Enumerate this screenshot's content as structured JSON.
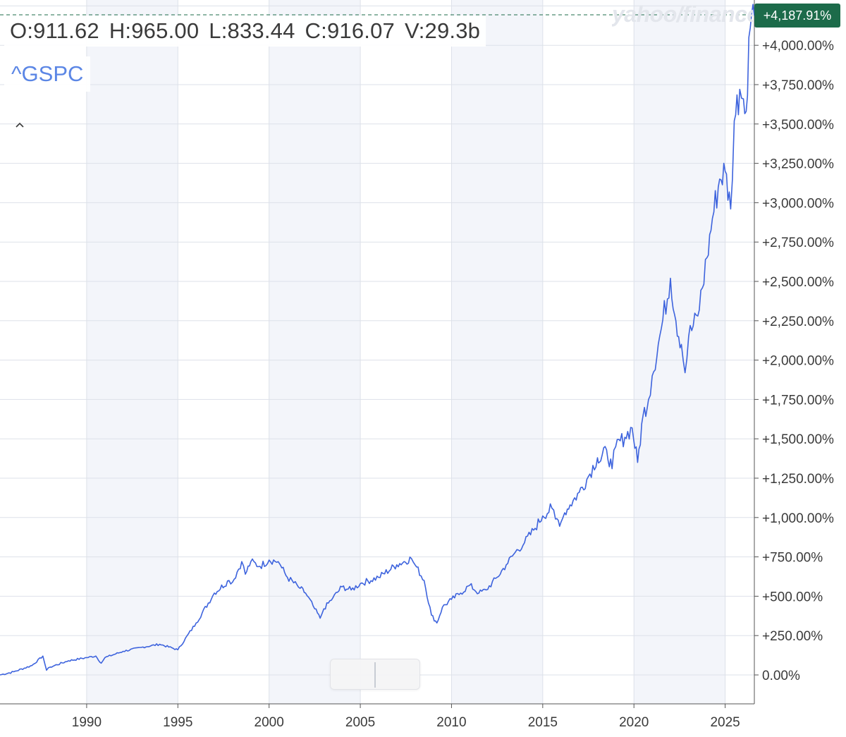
{
  "ohlc": {
    "open": "O:911.62",
    "high": "H:965.00",
    "low": "L:833.44",
    "close": "C:916.07",
    "volume": "V:29.3b"
  },
  "symbol": "^GSPC",
  "collapse_icon": "chevron-up-icon",
  "watermark": "yahoo/finance",
  "last_value_label": "+4,187.91%",
  "colors": {
    "line": "#3d63dd",
    "band": "#f3f5fa",
    "grid": "#dde1e9",
    "badge": "#1c6b4a",
    "symbol": "#5b86e5",
    "text": "#3a3a3a"
  },
  "chart_data": {
    "type": "line",
    "title": "",
    "xlabel": "",
    "ylabel": "",
    "x_ticks": [
      "1990",
      "1995",
      "2000",
      "2005",
      "2010",
      "2015",
      "2020",
      "2025"
    ],
    "y_ticks": [
      "0.00%",
      "+250.00%",
      "+500.00%",
      "+750.00%",
      "+1,000.00%",
      "+1,250.00%",
      "+1,500.00%",
      "+1,750.00%",
      "+2,000.00%",
      "+2,250.00%",
      "+2,500.00%",
      "+2,750.00%",
      "+3,000.00%",
      "+3,250.00%",
      "+3,500.00%",
      "+3,750.00%",
      "+4,000.00%"
    ],
    "y_tick_values": [
      0,
      250,
      500,
      750,
      1000,
      1250,
      1500,
      1750,
      2000,
      2250,
      2500,
      2750,
      3000,
      3250,
      3500,
      3750,
      4000
    ],
    "x_tick_values": [
      1990,
      1995,
      2000,
      2005,
      2010,
      2015,
      2020,
      2025
    ],
    "xlim": [
      1985.25,
      2026.6
    ],
    "ylim": [
      0,
      4250
    ],
    "shaded_periods": [
      [
        1990,
        1995
      ],
      [
        2000,
        2005
      ],
      [
        2010,
        2015
      ],
      [
        2020,
        2025
      ]
    ],
    "last_value": 4187.91,
    "series": [
      {
        "x": [
          1985.25,
          1986.0,
          1987.0,
          1987.6,
          1987.8,
          1988.0,
          1989.0,
          1990.0,
          1990.5,
          1990.8,
          1991.0,
          1992.0,
          1993.0,
          1994.0,
          1995.0,
          1996.0,
          1997.0,
          1997.8,
          1998.0,
          1998.5,
          1998.7,
          1999.0,
          1999.5,
          2000.0,
          2000.5,
          2000.7,
          2001.0,
          2001.7,
          2002.0,
          2002.5,
          2002.8,
          2003.0,
          2003.5,
          2004.0,
          2004.5,
          2005.0,
          2006.0,
          2007.0,
          2007.8,
          2008.0,
          2008.5,
          2008.9,
          2009.2,
          2009.5,
          2010.0,
          2010.5,
          2011.0,
          2011.5,
          2011.9,
          2012.5,
          2013.0,
          2013.5,
          2014.0,
          2014.5,
          2015.0,
          2015.5,
          2015.7,
          2016.0,
          2016.2,
          2016.5,
          2017.0,
          2017.5,
          2018.0,
          2018.1,
          2018.5,
          2018.8,
          2019.0,
          2019.5,
          2019.9,
          2020.2,
          2020.5,
          2020.8,
          2021.0,
          2021.5,
          2022.0,
          2022.3,
          2022.6,
          2022.8,
          2023.0,
          2023.5,
          2024.0,
          2024.3,
          2024.7,
          2025.0,
          2025.3,
          2025.5,
          2025.8,
          2026.0,
          2026.15,
          2026.3,
          2026.45,
          2026.6
        ],
        "y": [
          0,
          20,
          60,
          120,
          30,
          50,
          90,
          110,
          120,
          75,
          110,
          150,
          175,
          195,
          160,
          330,
          520,
          600,
          590,
          720,
          640,
          720,
          690,
          730,
          720,
          680,
          620,
          550,
          520,
          420,
          360,
          420,
          490,
          560,
          540,
          580,
          620,
          700,
          740,
          700,
          600,
          380,
          330,
          430,
          480,
          520,
          570,
          520,
          540,
          620,
          700,
          780,
          840,
          920,
          1010,
          1060,
          990,
          970,
          1030,
          1080,
          1160,
          1260,
          1380,
          1350,
          1430,
          1310,
          1450,
          1510,
          1570,
          1350,
          1650,
          1750,
          1900,
          2200,
          2520,
          2250,
          2100,
          1920,
          2150,
          2280,
          2650,
          2900,
          3150,
          3200,
          2960,
          3520,
          3720,
          3660,
          3580,
          4050,
          4200,
          4187.91
        ]
      }
    ]
  }
}
